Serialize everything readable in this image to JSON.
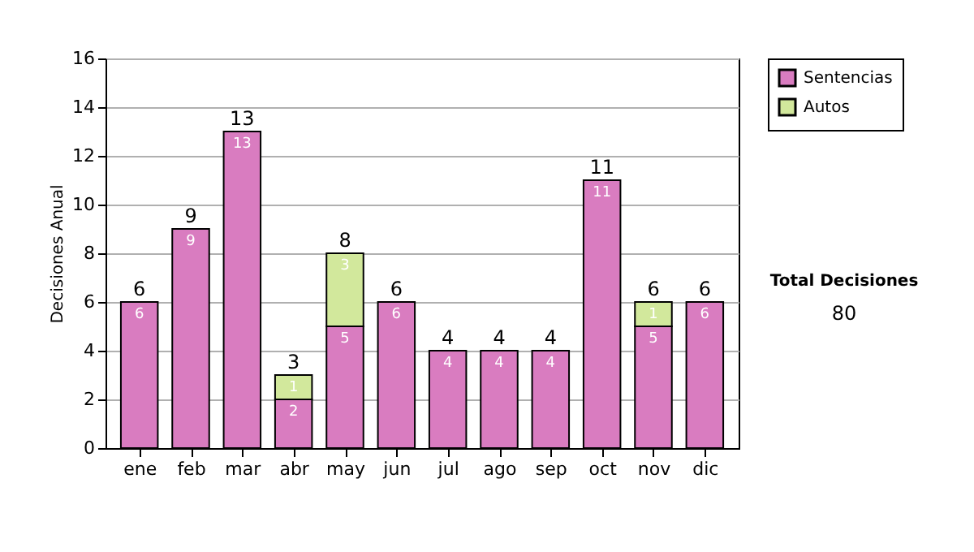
{
  "chart_data": {
    "type": "bar",
    "stacked": true,
    "ylabel": "Decisiones Anual",
    "categories": [
      "ene",
      "feb",
      "mar",
      "abr",
      "may",
      "jun",
      "jul",
      "ago",
      "sep",
      "oct",
      "nov",
      "dic"
    ],
    "series": [
      {
        "name": "Sentencias",
        "color": "#d97cc0",
        "values": [
          6,
          9,
          13,
          2,
          5,
          6,
          4,
          4,
          4,
          11,
          5,
          6
        ],
        "value_labels": [
          "6",
          "9",
          "13",
          "2",
          "5",
          "6",
          "4",
          "4",
          "4",
          "11",
          "5",
          "6"
        ]
      },
      {
        "name": "Autos",
        "color": "#d2e89c",
        "values": [
          null,
          null,
          null,
          1,
          3,
          null,
          null,
          null,
          null,
          null,
          1,
          null
        ],
        "value_labels": [
          null,
          null,
          null,
          "1",
          "3",
          null,
          null,
          null,
          null,
          null,
          "1",
          null
        ]
      }
    ],
    "totals": [
      "6",
      "9",
      "13",
      "3",
      "8",
      "6",
      "4",
      "4",
      "4",
      "11",
      "6",
      "6"
    ],
    "ylim": [
      0,
      16
    ],
    "yticks": [
      0,
      2,
      4,
      6,
      8,
      10,
      12,
      14,
      16
    ],
    "grid": "y",
    "legend": "right",
    "annotations": [
      "Total Decisiones",
      "80"
    ]
  }
}
